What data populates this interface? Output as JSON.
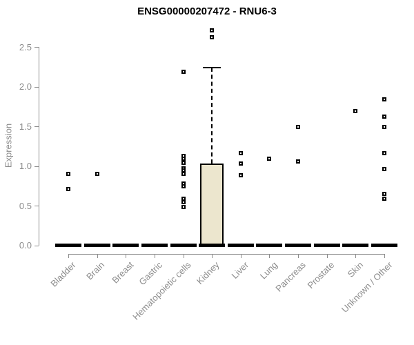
{
  "title": "ENSG00000207472 - RNU6-3",
  "chart_data": {
    "type": "boxplot",
    "title": "ENSG00000207472 - RNU6-3",
    "xlabel": "",
    "ylabel": "Expression",
    "yticks": [
      0.0,
      0.5,
      1.0,
      1.5,
      2.0,
      2.5
    ],
    "ylim": [
      0,
      2.75
    ],
    "grid": "off",
    "legend": "none",
    "categories": [
      "Bladder",
      "Brain",
      "Breast",
      "Gastric",
      "Hematopoietic cells",
      "Kidney",
      "Liver",
      "Lung",
      "Pancreas",
      "Prostate",
      "Skin",
      "Unknown / Other"
    ],
    "boxes": [
      {
        "category": "Bladder",
        "whisker_low": 0,
        "q1": 0,
        "median": 0,
        "q3": 0,
        "whisker_high": 0,
        "outliers": [
          0.9,
          0.71
        ]
      },
      {
        "category": "Brain",
        "whisker_low": 0,
        "q1": 0,
        "median": 0,
        "q3": 0,
        "whisker_high": 0,
        "outliers": [
          0.9
        ]
      },
      {
        "category": "Breast",
        "whisker_low": 0,
        "q1": 0,
        "median": 0,
        "q3": 0,
        "whisker_high": 0,
        "outliers": []
      },
      {
        "category": "Gastric",
        "whisker_low": 0,
        "q1": 0,
        "median": 0,
        "q3": 0,
        "whisker_high": 0,
        "outliers": []
      },
      {
        "category": "Hematopoietic cells",
        "whisker_low": 0,
        "q1": 0,
        "median": 0,
        "q3": 0,
        "whisker_high": 0,
        "outliers": [
          2.19,
          1.13,
          1.09,
          1.04,
          0.97,
          0.94,
          0.9,
          0.78,
          0.74,
          0.59,
          0.54,
          0.48
        ]
      },
      {
        "category": "Kidney",
        "whisker_low": 0,
        "q1": 0,
        "median": 0,
        "q3": 1.03,
        "whisker_high": 2.24,
        "outliers": [
          2.71,
          2.62
        ]
      },
      {
        "category": "Liver",
        "whisker_low": 0,
        "q1": 0,
        "median": 0,
        "q3": 0,
        "whisker_high": 0,
        "outliers": [
          1.16,
          1.03,
          0.88
        ]
      },
      {
        "category": "Lung",
        "whisker_low": 0,
        "q1": 0,
        "median": 0,
        "q3": 0,
        "whisker_high": 0,
        "outliers": [
          1.09
        ]
      },
      {
        "category": "Pancreas",
        "whisker_low": 0,
        "q1": 0,
        "median": 0,
        "q3": 0,
        "whisker_high": 0,
        "outliers": [
          1.49,
          1.06
        ]
      },
      {
        "category": "Prostate",
        "whisker_low": 0,
        "q1": 0,
        "median": 0,
        "q3": 0,
        "whisker_high": 0,
        "outliers": []
      },
      {
        "category": "Skin",
        "whisker_low": 0,
        "q1": 0,
        "median": 0,
        "q3": 0,
        "whisker_high": 0,
        "outliers": [
          1.69
        ]
      },
      {
        "category": "Unknown / Other",
        "whisker_low": 0,
        "q1": 0,
        "median": 0,
        "q3": 0,
        "whisker_high": 0,
        "outliers": [
          1.84,
          1.62,
          1.49,
          1.16,
          0.96,
          0.65,
          0.59
        ]
      }
    ],
    "colors": {
      "box_fill": "#ece6ce",
      "box_border": "#000000",
      "point": "#000000",
      "axis": "#8c8c8c",
      "tick_text": "#8c8c8c",
      "title_text": "#000000"
    }
  }
}
